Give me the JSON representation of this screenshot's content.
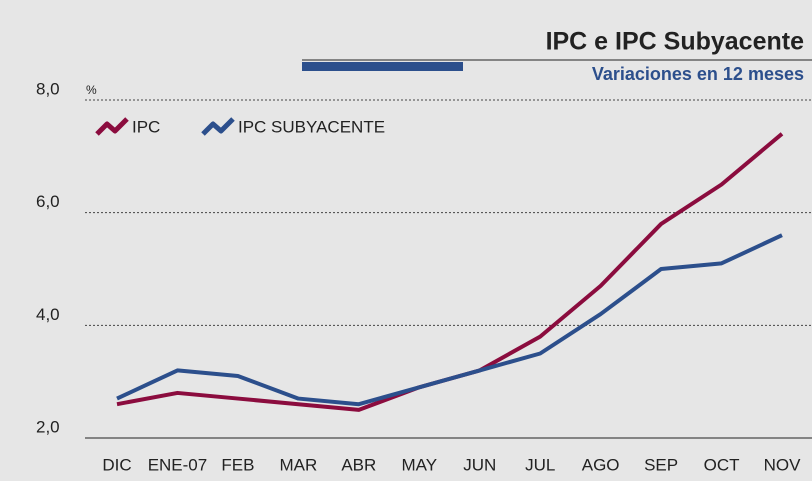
{
  "chart_data": {
    "type": "line",
    "title": "IPC e IPC Subyacente",
    "subtitle": "Variaciones en 12 meses",
    "y_unit": "%",
    "categories": [
      "DIC",
      "ENE-07",
      "FEB",
      "MAR",
      "ABR",
      "MAY",
      "JUN",
      "JUL",
      "AGO",
      "SEP",
      "OCT",
      "NOV"
    ],
    "series": [
      {
        "name": "IPC",
        "color": "#8b0c3e",
        "values": [
          2.6,
          2.8,
          2.7,
          2.6,
          2.5,
          2.9,
          3.2,
          3.8,
          4.7,
          5.8,
          6.5,
          7.4
        ]
      },
      {
        "name": "IPC SUBYACENTE",
        "color": "#2c4f8c",
        "values": [
          2.7,
          3.2,
          3.1,
          2.7,
          2.6,
          2.9,
          3.2,
          3.5,
          4.2,
          5.0,
          5.1,
          5.6
        ]
      }
    ],
    "ylim": [
      2,
      8
    ],
    "yticks": [
      {
        "value": 2,
        "label": "2,0"
      },
      {
        "value": 4,
        "label": "4,0"
      },
      {
        "value": 6,
        "label": "6,0"
      },
      {
        "value": 8,
        "label": "8,0"
      }
    ],
    "grid": true,
    "legend": "top-left"
  }
}
